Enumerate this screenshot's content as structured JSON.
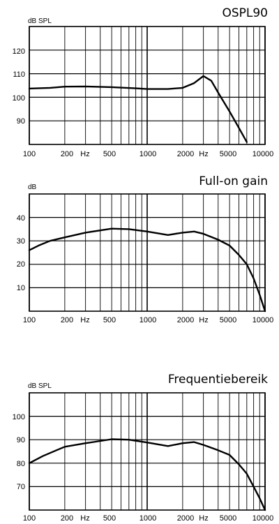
{
  "chart_data": [
    {
      "type": "line",
      "title": "OSPL90",
      "ylabel": "dB SPL",
      "xscale": "log",
      "xlim": [
        100,
        10000
      ],
      "ylim": [
        80,
        130
      ],
      "grid": true,
      "y_ticks": [
        "120",
        "110",
        "100",
        "90"
      ],
      "x_tick_labels": [
        "100",
        "200",
        "Hz",
        "500",
        "1000",
        "2000",
        "Hz",
        "5000",
        "10000"
      ],
      "series": [
        {
          "x": [
            100,
            150,
            200,
            300,
            500,
            800,
            1000,
            1500,
            2000,
            2500,
            3000,
            3500,
            4000,
            5000,
            6000,
            7000
          ],
          "values": [
            103.7,
            104.0,
            104.5,
            104.6,
            104.3,
            103.8,
            103.5,
            103.5,
            104.0,
            106.0,
            109.0,
            107.0,
            102.0,
            94.0,
            87.0,
            81.0
          ]
        }
      ]
    },
    {
      "type": "line",
      "title": "Full-on gain",
      "ylabel": "dB",
      "xscale": "log",
      "xlim": [
        100,
        10000
      ],
      "ylim": [
        0,
        50
      ],
      "grid": true,
      "y_ticks": [
        "40",
        "30",
        "20",
        "10"
      ],
      "x_tick_labels": [
        "100",
        "200",
        "Hz",
        "500",
        "1000",
        "2000",
        "Hz",
        "5000",
        "10000"
      ],
      "series": [
        {
          "x": [
            100,
            120,
            150,
            200,
            300,
            500,
            700,
            1000,
            1500,
            2000,
            2500,
            3000,
            4000,
            5000,
            6000,
            7000,
            8000,
            9000,
            10000
          ],
          "values": [
            26.0,
            28.0,
            30.0,
            31.5,
            33.5,
            35.2,
            35.0,
            34.0,
            32.5,
            33.5,
            34.0,
            33.0,
            30.5,
            28.0,
            24.0,
            20.0,
            14.0,
            7.0,
            0.0
          ]
        }
      ]
    },
    {
      "type": "line",
      "title": "Frequentiebereik",
      "ylabel": "dB SPL",
      "xscale": "log",
      "xlim": [
        100,
        10000
      ],
      "ylim": [
        60,
        110
      ],
      "grid": true,
      "y_ticks": [
        "100",
        "90",
        "80",
        "70"
      ],
      "x_tick_labels": [
        "100",
        "200",
        "Hz",
        "500",
        "1000",
        "2000",
        "Hz",
        "5000",
        "10000"
      ],
      "series": [
        {
          "x": [
            100,
            130,
            170,
            200,
            300,
            500,
            700,
            1000,
            1500,
            2000,
            2500,
            3000,
            4000,
            5000,
            6000,
            7000,
            8000,
            9000,
            10000
          ],
          "values": [
            80.0,
            83.0,
            85.5,
            87.0,
            88.5,
            90.2,
            90.0,
            88.8,
            87.3,
            88.5,
            89.0,
            87.8,
            85.5,
            83.5,
            79.5,
            75.5,
            70.0,
            65.0,
            60.0
          ]
        }
      ]
    }
  ]
}
